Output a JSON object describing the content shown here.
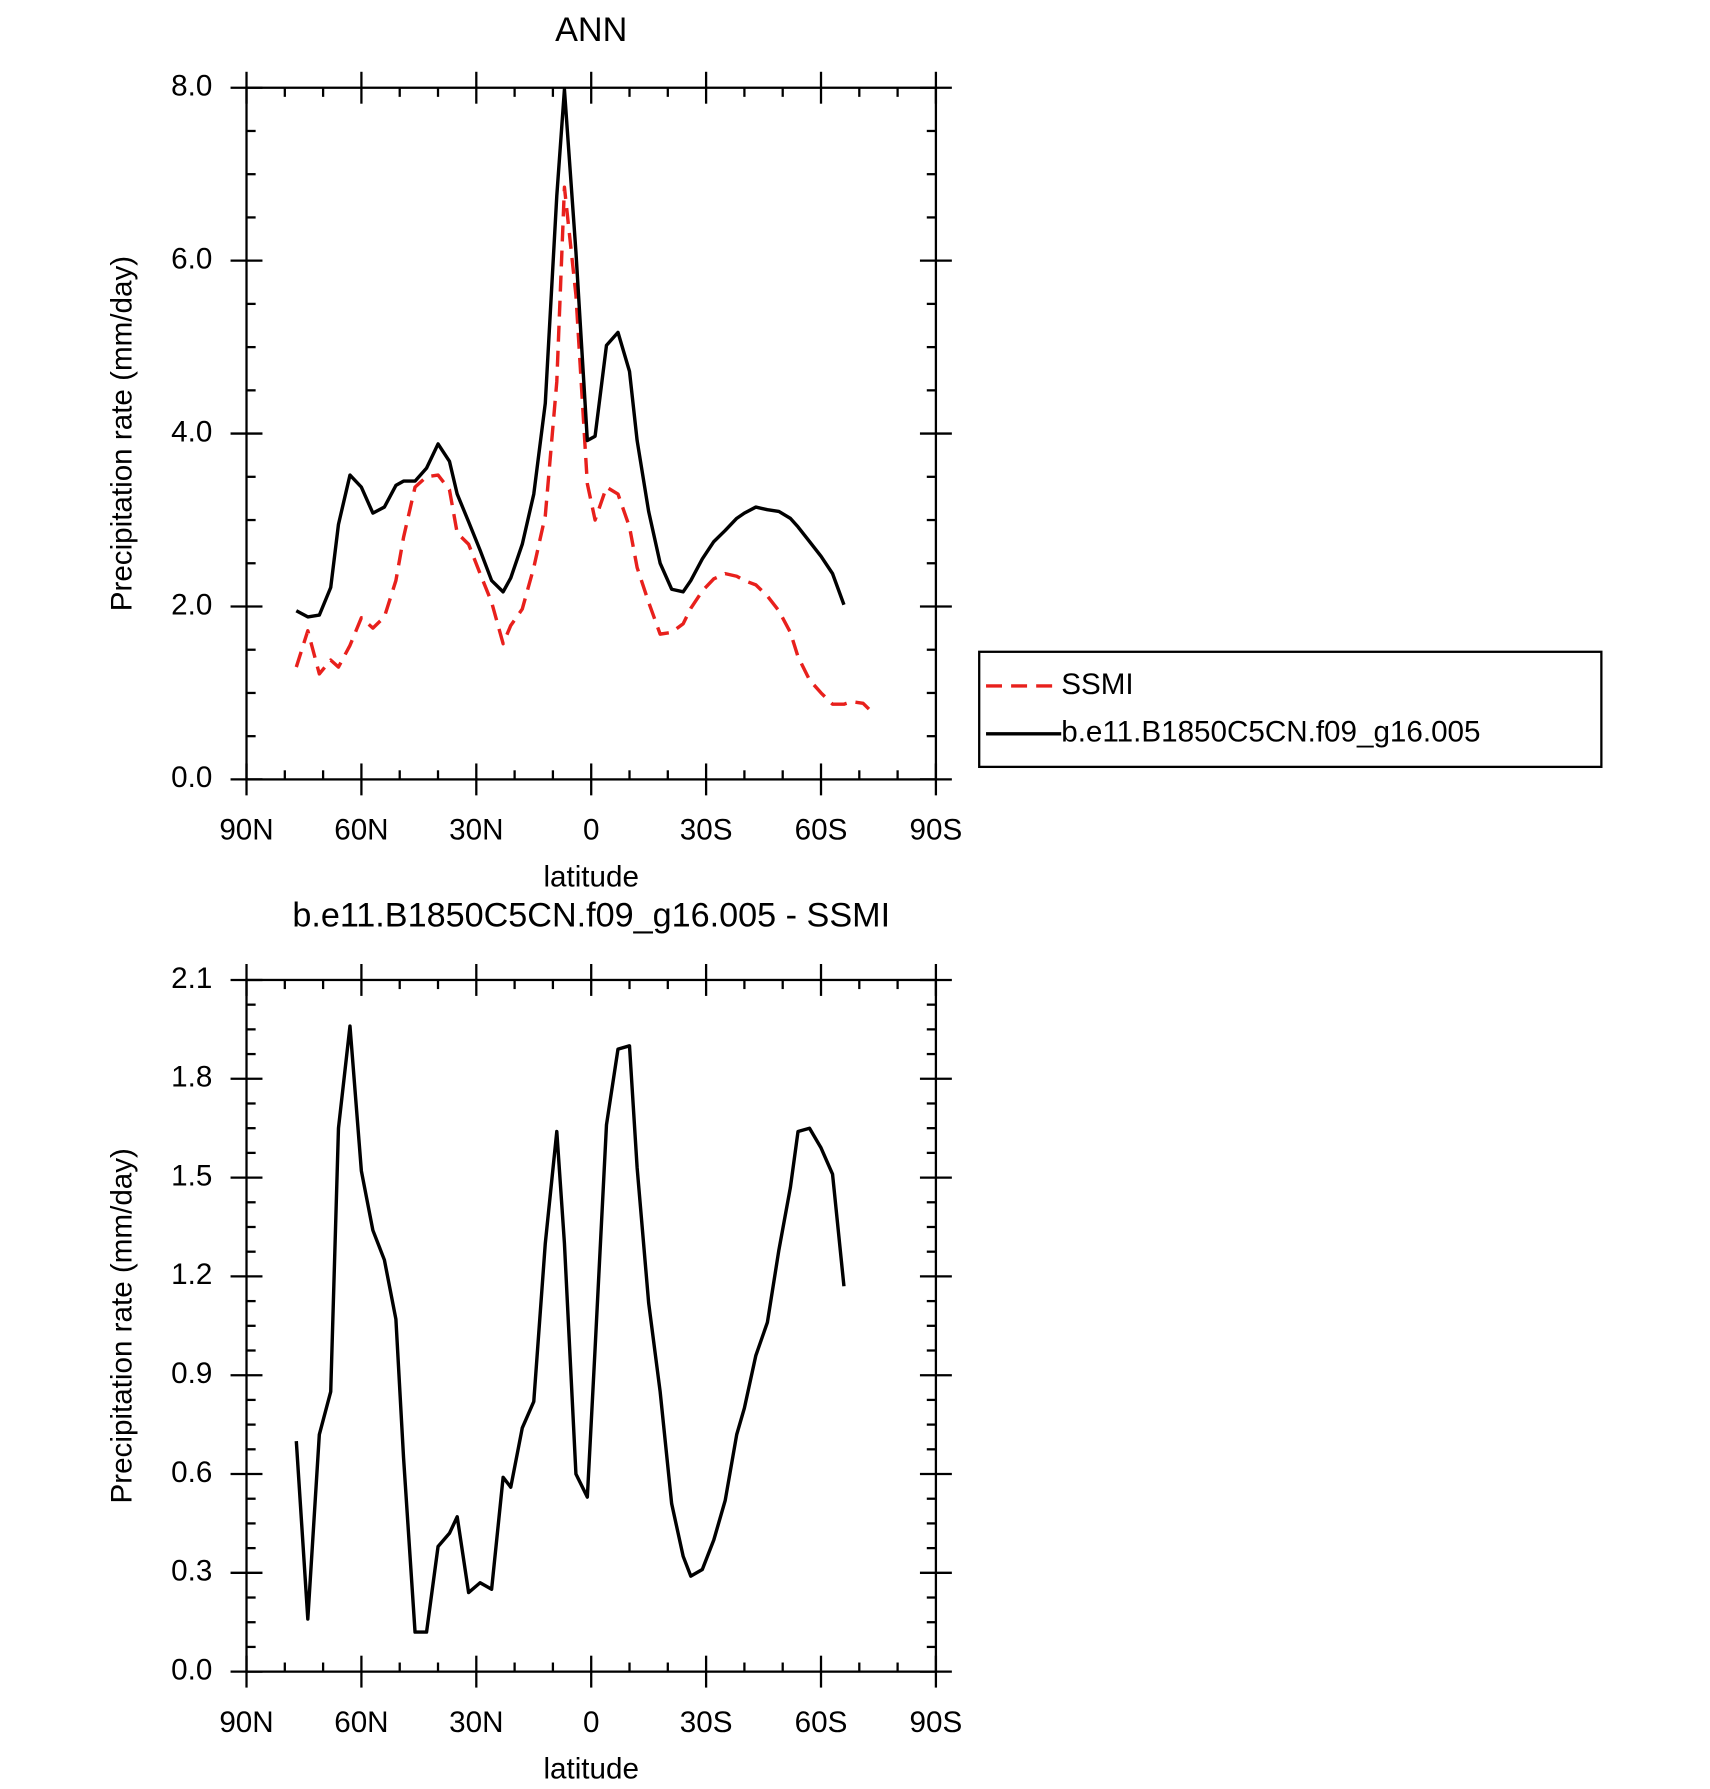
{
  "chart_data": [
    {
      "type": "line",
      "title": "ANN",
      "x_label": "latitude",
      "y_label": "Precipitation rate (mm/day)",
      "x": [
        77,
        74,
        71,
        68,
        66,
        63,
        60,
        57,
        54,
        51,
        49,
        46,
        43,
        40,
        37,
        35,
        32,
        29,
        26,
        23,
        21,
        18,
        15,
        12,
        9,
        7,
        4,
        1,
        -1,
        -4,
        -7,
        -10,
        -12,
        -15,
        -18,
        -21,
        -24,
        -26,
        -29,
        -32,
        -35,
        -38,
        -40,
        -43,
        -46,
        -49,
        -52,
        -54,
        -57,
        -60,
        -63,
        -66,
        -68,
        -71,
        -74
      ],
      "series": [
        {
          "name": "SSMI",
          "color": "#e8201c",
          "dash": true,
          "values": [
            1.3,
            1.72,
            1.22,
            1.38,
            1.3,
            1.55,
            1.87,
            1.75,
            1.88,
            2.3,
            2.8,
            3.38,
            3.5,
            3.52,
            3.35,
            2.85,
            2.72,
            2.38,
            2.05,
            1.57,
            1.78,
            1.97,
            2.45,
            3.05,
            4.6,
            6.85,
            5.6,
            3.42,
            3.0,
            3.38,
            3.3,
            2.92,
            2.45,
            2.05,
            1.68,
            1.7,
            1.8,
            1.98,
            2.18,
            2.32,
            2.38,
            2.35,
            2.3,
            2.25,
            2.12,
            1.95,
            1.7,
            1.42,
            1.15,
            1.0,
            0.87,
            0.87,
            0.9,
            0.88,
            0.75
          ]
        },
        {
          "name": "b.e11.B1850C5CN.f09_g16.005",
          "color": "#000000",
          "dash": false,
          "values": [
            1.95,
            1.88,
            1.9,
            2.22,
            2.95,
            3.52,
            3.38,
            3.08,
            3.15,
            3.4,
            3.45,
            3.45,
            3.6,
            3.88,
            3.68,
            3.3,
            2.98,
            2.65,
            2.3,
            2.17,
            2.33,
            2.72,
            3.3,
            4.35,
            6.75,
            7.98,
            6.1,
            3.92,
            3.97,
            5.02,
            5.17,
            4.72,
            3.92,
            3.1,
            2.5,
            2.2,
            2.17,
            2.3,
            2.55,
            2.75,
            2.88,
            3.02,
            3.08,
            3.15,
            3.12,
            3.1,
            3.02,
            2.92,
            2.75,
            2.58,
            2.38,
            2.02,
            null,
            null,
            null
          ]
        }
      ],
      "xlim": [
        90,
        -90
      ],
      "xticks": [
        {
          "value": 90,
          "label": "90N"
        },
        {
          "value": 60,
          "label": "60N"
        },
        {
          "value": 30,
          "label": "30N"
        },
        0,
        {
          "value": -30,
          "label": "30S"
        },
        {
          "value": -60,
          "label": "60S"
        },
        {
          "value": -90,
          "label": "90S"
        }
      ],
      "ylim": [
        0,
        8
      ],
      "yticks": [
        {
          "value": 0,
          "label": "0.0"
        },
        {
          "value": 2,
          "label": "2.0"
        },
        {
          "value": 4,
          "label": "4.0"
        },
        {
          "value": 6,
          "label": "6.0"
        },
        {
          "value": 8,
          "label": "8.0"
        }
      ],
      "legend": "outside-right"
    },
    {
      "type": "line",
      "title": "b.e11.B1850C5CN.f09_g16.005 - SSMI",
      "x_label": "latitude",
      "y_label": "Precipitation rate (mm/day)",
      "x": [
        77,
        74,
        71,
        68,
        66,
        63,
        60,
        57,
        54,
        51,
        49,
        46,
        43,
        40,
        37,
        35,
        32,
        29,
        26,
        23,
        21,
        18,
        15,
        12,
        9,
        7,
        4,
        1,
        -1,
        -4,
        -7,
        -10,
        -12,
        -15,
        -18,
        -21,
        -24,
        -26,
        -29,
        -32,
        -35,
        -38,
        -40,
        -43,
        -46,
        -49,
        -52,
        -54,
        -57,
        -60,
        -63,
        -66
      ],
      "series": [
        {
          "color": "#000000",
          "dash": false,
          "values": [
            0.7,
            0.16,
            0.72,
            0.85,
            1.65,
            1.96,
            1.52,
            1.34,
            1.25,
            1.07,
            0.65,
            0.12,
            0.12,
            0.38,
            0.42,
            0.47,
            0.24,
            0.27,
            0.25,
            0.59,
            0.56,
            0.74,
            0.82,
            1.3,
            1.64,
            1.3,
            0.6,
            0.53,
            0.98,
            1.66,
            1.89,
            1.9,
            1.53,
            1.12,
            0.85,
            0.51,
            0.35,
            0.29,
            0.31,
            0.4,
            0.52,
            0.72,
            0.8,
            0.96,
            1.06,
            1.28,
            1.47,
            1.64,
            1.65,
            1.59,
            1.51,
            1.17
          ]
        }
      ],
      "xlim": [
        90,
        -90
      ],
      "xticks": [
        {
          "value": 90,
          "label": "90N"
        },
        {
          "value": 60,
          "label": "60N"
        },
        {
          "value": 30,
          "label": "30N"
        },
        0,
        {
          "value": -30,
          "label": "30S"
        },
        {
          "value": -60,
          "label": "60S"
        },
        {
          "value": -90,
          "label": "90S"
        }
      ],
      "ylim": [
        0,
        2.1
      ],
      "yticks": [
        {
          "value": 0,
          "label": "0.0"
        },
        {
          "value": 0.3,
          "label": "0.3"
        },
        {
          "value": 0.6,
          "label": "0.6"
        },
        {
          "value": 0.9,
          "label": "0.9"
        },
        {
          "value": 1.2,
          "label": "1.2"
        },
        {
          "value": 1.5,
          "label": "1.5"
        },
        {
          "value": 1.8,
          "label": "1.8"
        },
        {
          "value": 2.1,
          "label": "2.1"
        }
      ]
    }
  ]
}
